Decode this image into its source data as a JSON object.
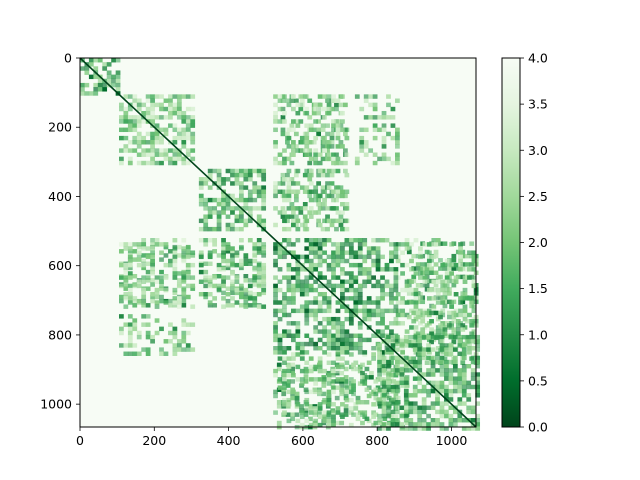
{
  "chart_data": {
    "type": "heatmap",
    "title": "",
    "xlabel": "",
    "ylabel": "",
    "matrix_size": 1066,
    "xlim": [
      0,
      1066
    ],
    "ylim": [
      1066,
      0
    ],
    "x_ticks": [
      0,
      200,
      400,
      600,
      800,
      1000
    ],
    "x_tick_labels": [
      "0",
      "200",
      "400",
      "600",
      "800",
      "1000"
    ],
    "y_ticks": [
      0,
      200,
      400,
      600,
      800,
      1000
    ],
    "y_tick_labels": [
      "0",
      "200",
      "400",
      "600",
      "800",
      "1000"
    ],
    "colormap": "Greens_r",
    "value_range": [
      0.0,
      4.0
    ],
    "colorbar": {
      "ticks": [
        0.0,
        0.5,
        1.0,
        1.5,
        2.0,
        2.5,
        3.0,
        3.5,
        4.0
      ],
      "tick_labels": [
        "0.0",
        "0.5",
        "1.0",
        "1.5",
        "2.0",
        "2.5",
        "3.0",
        "3.5",
        "4.0"
      ],
      "color_low": "#00441b",
      "color_mid": "#41ab5d",
      "color_high": "#f7fcf5"
    },
    "blocks": [
      {
        "x0": 0,
        "x1": 105,
        "y0": 0,
        "y1": 105,
        "value": 1.5
      },
      {
        "x0": 105,
        "x1": 300,
        "y0": 105,
        "y1": 300,
        "value": 2.2
      },
      {
        "x0": 320,
        "x1": 500,
        "y0": 320,
        "y1": 500,
        "value": 1.6
      },
      {
        "x0": 520,
        "x1": 850,
        "y0": 520,
        "y1": 850,
        "value": 1.4
      },
      {
        "x0": 800,
        "x1": 1066,
        "y0": 800,
        "y1": 1066,
        "value": 1.7
      }
    ],
    "off_diagonal_bands": [
      {
        "x0": 105,
        "x1": 300,
        "y0": 540,
        "y1": 720,
        "value": 1.8
      },
      {
        "x0": 320,
        "x1": 500,
        "y0": 540,
        "y1": 720,
        "value": 1.7
      },
      {
        "x0": 105,
        "x1": 300,
        "y0": 740,
        "y1": 850,
        "value": 2.0
      },
      {
        "x0": 520,
        "x1": 720,
        "y0": 320,
        "y1": 500,
        "value": 2.0
      },
      {
        "x0": 520,
        "x1": 720,
        "y0": 105,
        "y1": 300,
        "value": 2.3
      },
      {
        "x0": 880,
        "x1": 1066,
        "y0": 530,
        "y1": 720,
        "value": 1.6
      },
      {
        "x0": 520,
        "x1": 850,
        "y0": 850,
        "y1": 1066,
        "value": 2.2
      },
      {
        "x0": 880,
        "x1": 1066,
        "y0": 730,
        "y1": 880,
        "value": 1.8
      }
    ]
  }
}
